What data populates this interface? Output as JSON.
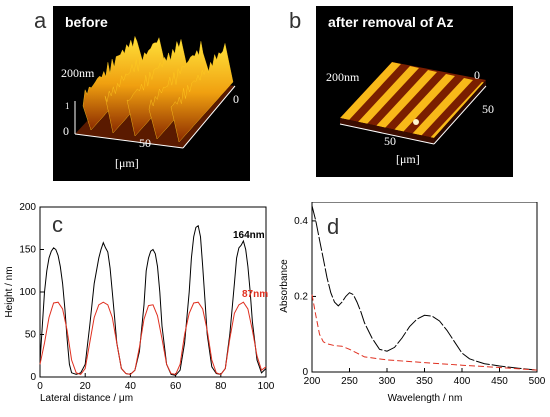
{
  "panels": {
    "a": {
      "letter": "a",
      "title": "before",
      "height_label": "200nm",
      "axis_ticks": [
        "0",
        "50",
        "0"
      ],
      "axis_unit": "[μm]",
      "small_tick": "1"
    },
    "b": {
      "letter": "b",
      "title": "after removal  of Az",
      "height_label": "200nm",
      "axis_ticks": [
        "50",
        "50",
        "0"
      ],
      "axis_unit": "[μm]"
    }
  },
  "colors": {
    "before_line": "#000000",
    "after_line": "#e03020",
    "absorb_black": "#000000",
    "absorb_red": "#e03020",
    "afm_bright": "#ffd21a",
    "afm_dark": "#a83000"
  },
  "chart_data": [
    {
      "panel": "c",
      "type": "line",
      "xlabel": "Lateral distance / μm",
      "ylabel": "Height / nm",
      "xlim": [
        0,
        100
      ],
      "ylim": [
        0,
        200
      ],
      "xticks": [
        0,
        20,
        40,
        60,
        80,
        100
      ],
      "yticks": [
        0,
        50,
        100,
        150,
        200
      ],
      "annotations": [
        {
          "text": "164nm",
          "color": "#000000"
        },
        {
          "text": "87nm",
          "color": "#e03020"
        }
      ],
      "series": [
        {
          "color": "#000000",
          "x": [
            0,
            1,
            2,
            3,
            4,
            5,
            6,
            7,
            8,
            9,
            10,
            11,
            12,
            13,
            14,
            16,
            18,
            20,
            22,
            24,
            26,
            27,
            28,
            29,
            30,
            31,
            32,
            33,
            34,
            36,
            38,
            40,
            42,
            44,
            46,
            47,
            48,
            49,
            50,
            51,
            52,
            53,
            54,
            56,
            58,
            60,
            62,
            64,
            66,
            67,
            68,
            69,
            70,
            71,
            72,
            73,
            74,
            76,
            78,
            80,
            82,
            84,
            86,
            87,
            88,
            89,
            90,
            91,
            92,
            93,
            94,
            96,
            98,
            100
          ],
          "y": [
            18,
            60,
            100,
            125,
            140,
            148,
            152,
            150,
            143,
            130,
            110,
            80,
            45,
            15,
            5,
            3,
            5,
            15,
            60,
            110,
            140,
            150,
            158,
            152,
            147,
            128,
            100,
            70,
            40,
            10,
            4,
            3,
            8,
            30,
            85,
            125,
            140,
            148,
            150,
            145,
            130,
            100,
            60,
            15,
            3,
            2,
            8,
            40,
            100,
            140,
            165,
            176,
            178,
            165,
            130,
            90,
            50,
            12,
            4,
            3,
            10,
            50,
            110,
            140,
            152,
            155,
            160,
            150,
            130,
            100,
            65,
            20,
            5,
            10
          ]
        },
        {
          "color": "#e03020",
          "x": [
            0,
            2,
            4,
            6,
            8,
            10,
            12,
            14,
            16,
            18,
            20,
            22,
            24,
            26,
            28,
            30,
            32,
            34,
            36,
            38,
            40,
            42,
            44,
            46,
            48,
            50,
            52,
            54,
            56,
            58,
            60,
            62,
            64,
            66,
            68,
            70,
            72,
            74,
            76,
            78,
            80,
            82,
            84,
            86,
            88,
            90,
            92,
            94,
            96,
            98,
            100
          ],
          "y": [
            15,
            40,
            70,
            87,
            88,
            80,
            55,
            20,
            5,
            3,
            10,
            40,
            70,
            85,
            88,
            85,
            70,
            40,
            10,
            4,
            3,
            8,
            35,
            68,
            84,
            85,
            72,
            45,
            15,
            4,
            3,
            15,
            50,
            75,
            87,
            88,
            80,
            55,
            20,
            5,
            3,
            10,
            45,
            75,
            85,
            88,
            80,
            55,
            25,
            8,
            12
          ]
        }
      ]
    },
    {
      "panel": "d",
      "type": "line",
      "xlabel": "Wavelength / nm",
      "ylabel": "Absorbance",
      "xlim": [
        200,
        500
      ],
      "ylim": [
        0,
        0.45
      ],
      "xticks": [
        200,
        250,
        300,
        350,
        400,
        450,
        500
      ],
      "yticks": [
        0,
        0.2,
        0.4
      ],
      "series": [
        {
          "color": "#000000",
          "x": [
            200,
            205,
            210,
            215,
            220,
            225,
            230,
            235,
            240,
            245,
            250,
            255,
            260,
            265,
            270,
            280,
            290,
            300,
            310,
            320,
            330,
            340,
            350,
            360,
            370,
            380,
            390,
            400,
            410,
            420,
            430,
            450,
            475,
            500
          ],
          "y": [
            0.44,
            0.4,
            0.35,
            0.3,
            0.25,
            0.21,
            0.185,
            0.175,
            0.185,
            0.2,
            0.21,
            0.205,
            0.185,
            0.16,
            0.13,
            0.09,
            0.06,
            0.055,
            0.065,
            0.09,
            0.12,
            0.14,
            0.15,
            0.148,
            0.135,
            0.11,
            0.08,
            0.05,
            0.035,
            0.028,
            0.022,
            0.016,
            0.01,
            0.005
          ]
        },
        {
          "color": "#e03020",
          "x": [
            200,
            205,
            210,
            215,
            220,
            230,
            240,
            250,
            260,
            270,
            300,
            350,
            400,
            450,
            500
          ],
          "y": [
            0.205,
            0.15,
            0.1,
            0.08,
            0.075,
            0.07,
            0.068,
            0.06,
            0.05,
            0.04,
            0.032,
            0.025,
            0.018,
            0.012,
            0.005
          ]
        }
      ]
    }
  ]
}
